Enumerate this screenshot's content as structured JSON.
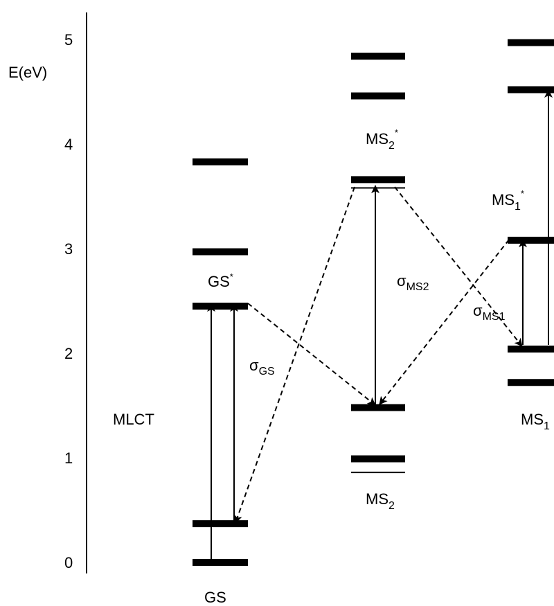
{
  "axis": {
    "label": "E(eV)",
    "ticks": [
      "0",
      "1",
      "2",
      "3",
      "4",
      "5"
    ]
  },
  "region_label": "MLCT",
  "states": {
    "gs": {
      "base": "GS"
    },
    "gs_star": {
      "base": "GS",
      "sup": "*"
    },
    "ms2": {
      "base": "MS",
      "sub": "2"
    },
    "ms2_star": {
      "base": "MS",
      "sub": "2",
      "sup": "*"
    },
    "ms1": {
      "base": "MS",
      "sub": "1"
    },
    "ms1_star": {
      "base": "MS",
      "sub": "1",
      "sup": "*"
    }
  },
  "cross_sections": {
    "gs": {
      "base": "σ",
      "sub": "GS"
    },
    "ms2": {
      "base": "σ",
      "sub": "MS2"
    },
    "ms1": {
      "base": "σ",
      "sub": "MS1"
    }
  },
  "levels_ev": {
    "gs": [
      0.0,
      0.37,
      2.45,
      2.97,
      3.83
    ],
    "ms2": [
      0.86,
      0.99,
      1.48,
      3.58,
      3.66,
      4.46,
      4.84
    ],
    "ms1": [
      1.72,
      2.04,
      3.08,
      4.52,
      4.97
    ]
  },
  "colors": {
    "ink": "#000000",
    "background": "#ffffff"
  }
}
